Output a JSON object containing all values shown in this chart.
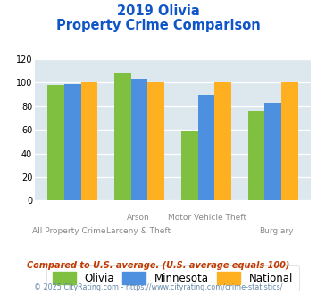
{
  "title_line1": "2019 Olivia",
  "title_line2": "Property Crime Comparison",
  "cat_labels_top": [
    "",
    "Arson",
    "Motor Vehicle Theft",
    ""
  ],
  "cat_labels_bot": [
    "All Property Crime",
    "Larceny & Theft",
    "",
    "Burglary"
  ],
  "olivia": [
    98,
    108,
    59,
    76
  ],
  "minnesota": [
    99,
    103,
    90,
    83
  ],
  "national": [
    100,
    100,
    100,
    100
  ],
  "olivia_color": "#80c040",
  "minnesota_color": "#4d90e0",
  "national_color": "#ffb020",
  "ylim": [
    0,
    120
  ],
  "yticks": [
    0,
    20,
    40,
    60,
    80,
    100,
    120
  ],
  "bg_color": "#dde8ee",
  "title_color": "#1055c8",
  "label_color": "#888888",
  "footnote1": "Compared to U.S. average. (U.S. average equals 100)",
  "footnote2": "© 2025 CityRating.com - https://www.cityrating.com/crime-statistics/",
  "legend_labels": [
    "Olivia",
    "Minnesota",
    "National"
  ],
  "bar_width": 0.25,
  "grid_color": "#ffffff"
}
